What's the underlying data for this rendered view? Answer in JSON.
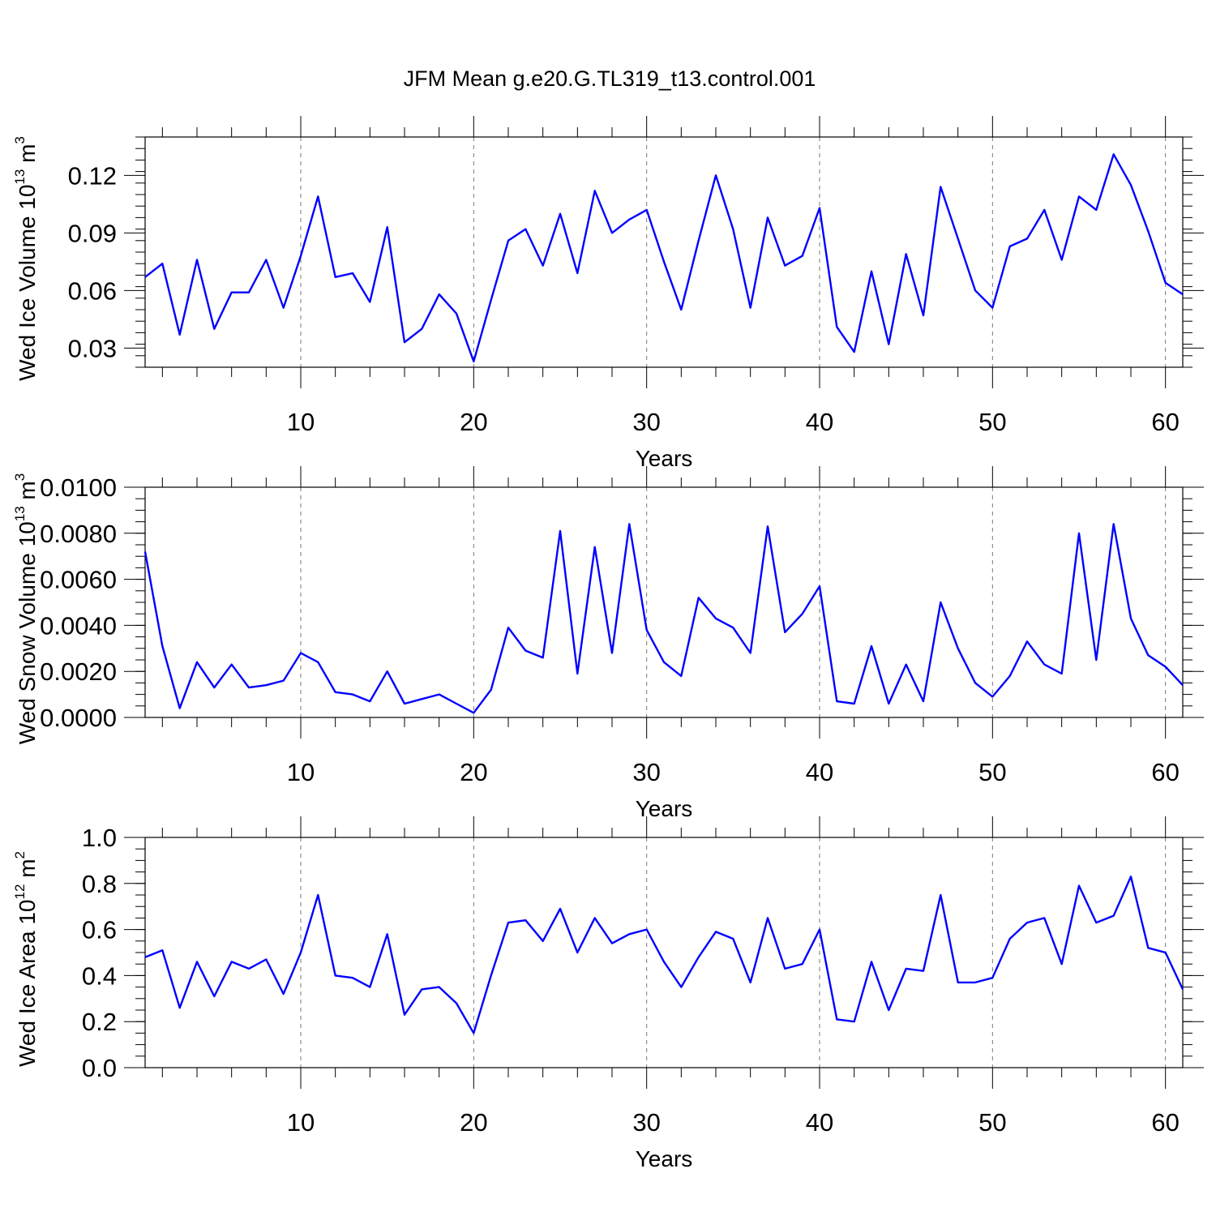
{
  "title": "JFM Mean g.e20.G.TL319_t13.control.001",
  "chart_data": [
    {
      "type": "line",
      "ylabel": {
        "main": "Wed Ice Volume 10",
        "sup": "13",
        "unit": " m",
        "unit_sup": "3"
      },
      "xlabel": "Years",
      "xlim": [
        1,
        61
      ],
      "ylim": [
        0.02,
        0.14
      ],
      "x_ticks": [
        10,
        20,
        30,
        40,
        50,
        60
      ],
      "y_ticks": [
        0.03,
        0.06,
        0.09,
        0.12
      ],
      "y_tick_labels": [
        "0.03",
        "0.06",
        "0.09",
        "0.12"
      ],
      "y_minor_step": 0.006,
      "color": "#0000ff",
      "x": [
        1,
        2,
        3,
        4,
        5,
        6,
        7,
        8,
        9,
        10,
        11,
        12,
        13,
        14,
        15,
        16,
        17,
        18,
        19,
        20,
        21,
        22,
        23,
        24,
        25,
        26,
        27,
        28,
        29,
        30,
        31,
        32,
        33,
        34,
        35,
        36,
        37,
        38,
        39,
        40,
        41,
        42,
        43,
        44,
        45,
        46,
        47,
        48,
        49,
        50,
        51,
        52,
        53,
        54,
        55,
        56,
        57,
        58,
        59,
        60,
        61
      ],
      "values": [
        0.067,
        0.074,
        0.037,
        0.076,
        0.04,
        0.059,
        0.059,
        0.076,
        0.051,
        0.078,
        0.109,
        0.067,
        0.069,
        0.054,
        0.093,
        0.033,
        0.04,
        0.058,
        0.048,
        0.023,
        0.055,
        0.086,
        0.092,
        0.073,
        0.1,
        0.069,
        0.112,
        0.09,
        0.097,
        0.102,
        0.075,
        0.05,
        0.086,
        0.12,
        0.092,
        0.051,
        0.098,
        0.073,
        0.078,
        0.103,
        0.041,
        0.028,
        0.07,
        0.032,
        0.079,
        0.047,
        0.114,
        0.087,
        0.06,
        0.051,
        0.083,
        0.087,
        0.102,
        0.076,
        0.109,
        0.102,
        0.131,
        0.115,
        0.091,
        0.064,
        0.058
      ]
    },
    {
      "type": "line",
      "ylabel": {
        "main": "Wed Snow Volume 10",
        "sup": "13",
        "unit": " m",
        "unit_sup": "3"
      },
      "xlabel": "Years",
      "xlim": [
        1,
        61
      ],
      "ylim": [
        0,
        0.01
      ],
      "x_ticks": [
        10,
        20,
        30,
        40,
        50,
        60
      ],
      "y_ticks": [
        0,
        0.002,
        0.004,
        0.006,
        0.008,
        0.01
      ],
      "y_tick_labels": [
        "0.0000",
        "0.0020",
        "0.0040",
        "0.0060",
        "0.0080",
        "0.0100"
      ],
      "y_minor_step": 0.0005,
      "color": "#0000ff",
      "x": [
        1,
        2,
        3,
        4,
        5,
        6,
        7,
        8,
        9,
        10,
        11,
        12,
        13,
        14,
        15,
        16,
        17,
        18,
        19,
        20,
        21,
        22,
        23,
        24,
        25,
        26,
        27,
        28,
        29,
        30,
        31,
        32,
        33,
        34,
        35,
        36,
        37,
        38,
        39,
        40,
        41,
        42,
        43,
        44,
        45,
        46,
        47,
        48,
        49,
        50,
        51,
        52,
        53,
        54,
        55,
        56,
        57,
        58,
        59,
        60,
        61
      ],
      "values": [
        0.0072,
        0.0031,
        0.0004,
        0.0024,
        0.0013,
        0.0023,
        0.0013,
        0.0014,
        0.0016,
        0.0028,
        0.0024,
        0.0011,
        0.001,
        0.0007,
        0.002,
        0.0006,
        0.0008,
        0.001,
        0.0006,
        0.0002,
        0.0012,
        0.0039,
        0.0029,
        0.0026,
        0.0081,
        0.0019,
        0.0074,
        0.0028,
        0.0084,
        0.0038,
        0.0024,
        0.0018,
        0.0052,
        0.0043,
        0.0039,
        0.0028,
        0.0083,
        0.0037,
        0.0045,
        0.0057,
        0.0007,
        0.0006,
        0.0031,
        0.0006,
        0.0023,
        0.0007,
        0.005,
        0.003,
        0.0015,
        0.0009,
        0.0018,
        0.0033,
        0.0023,
        0.0019,
        0.008,
        0.0025,
        0.0084,
        0.0043,
        0.0027,
        0.0022,
        0.0014
      ]
    },
    {
      "type": "line",
      "ylabel": {
        "main": "Wed Ice Area 10",
        "sup": "12",
        "unit": " m",
        "unit_sup": "2"
      },
      "xlabel": "Years",
      "xlim": [
        1,
        61
      ],
      "ylim": [
        0,
        1
      ],
      "x_ticks": [
        10,
        20,
        30,
        40,
        50,
        60
      ],
      "y_ticks": [
        0,
        0.2,
        0.4,
        0.6,
        0.8,
        1.0
      ],
      "y_tick_labels": [
        "0.0",
        "0.2",
        "0.4",
        "0.6",
        "0.8",
        "1.0"
      ],
      "y_minor_step": 0.05,
      "color": "#0000ff",
      "x": [
        1,
        2,
        3,
        4,
        5,
        6,
        7,
        8,
        9,
        10,
        11,
        12,
        13,
        14,
        15,
        16,
        17,
        18,
        19,
        20,
        21,
        22,
        23,
        24,
        25,
        26,
        27,
        28,
        29,
        30,
        31,
        32,
        33,
        34,
        35,
        36,
        37,
        38,
        39,
        40,
        41,
        42,
        43,
        44,
        45,
        46,
        47,
        48,
        49,
        50,
        51,
        52,
        53,
        54,
        55,
        56,
        57,
        58,
        59,
        60,
        61
      ],
      "values": [
        0.48,
        0.51,
        0.26,
        0.46,
        0.31,
        0.46,
        0.43,
        0.47,
        0.32,
        0.5,
        0.75,
        0.4,
        0.39,
        0.35,
        0.58,
        0.23,
        0.34,
        0.35,
        0.28,
        0.15,
        0.4,
        0.63,
        0.64,
        0.55,
        0.69,
        0.5,
        0.65,
        0.54,
        0.58,
        0.6,
        0.46,
        0.35,
        0.48,
        0.59,
        0.56,
        0.37,
        0.65,
        0.43,
        0.45,
        0.6,
        0.21,
        0.2,
        0.46,
        0.25,
        0.43,
        0.42,
        0.75,
        0.37,
        0.37,
        0.39,
        0.56,
        0.63,
        0.65,
        0.45,
        0.79,
        0.63,
        0.66,
        0.83,
        0.52,
        0.5,
        0.34
      ]
    }
  ]
}
